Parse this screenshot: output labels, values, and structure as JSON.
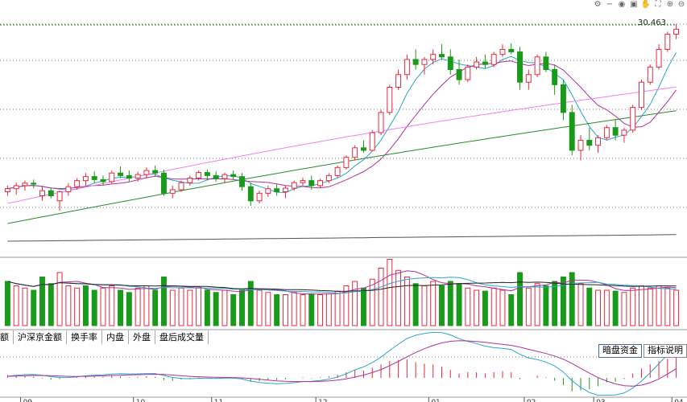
{
  "chart_data": {
    "type": "candlestick",
    "price_label": "30.463",
    "candles": [
      [
        27.18,
        27.3,
        27.1,
        27.24
      ],
      [
        27.24,
        27.36,
        27.12,
        27.3
      ],
      [
        27.3,
        27.4,
        27.2,
        27.35
      ],
      [
        27.35,
        27.42,
        27.25,
        27.33
      ],
      [
        27.1,
        27.3,
        27.0,
        27.2
      ],
      [
        27.2,
        27.25,
        27.05,
        27.1
      ],
      [
        27.0,
        27.2,
        26.8,
        27.18
      ],
      [
        27.18,
        27.35,
        27.1,
        27.28
      ],
      [
        27.28,
        27.45,
        27.22,
        27.4
      ],
      [
        27.4,
        27.55,
        27.3,
        27.48
      ],
      [
        27.48,
        27.58,
        27.35,
        27.42
      ],
      [
        27.42,
        27.5,
        27.3,
        27.38
      ],
      [
        27.38,
        27.6,
        27.33,
        27.55
      ],
      [
        27.55,
        27.68,
        27.45,
        27.5
      ],
      [
        27.5,
        27.6,
        27.38,
        27.45
      ],
      [
        27.45,
        27.58,
        27.38,
        27.52
      ],
      [
        27.52,
        27.66,
        27.44,
        27.6
      ],
      [
        27.6,
        27.7,
        27.48,
        27.55
      ],
      [
        27.55,
        27.62,
        27.1,
        27.15
      ],
      [
        27.15,
        27.3,
        27.05,
        27.22
      ],
      [
        27.22,
        27.4,
        27.18,
        27.36
      ],
      [
        27.36,
        27.5,
        27.3,
        27.45
      ],
      [
        27.45,
        27.6,
        27.4,
        27.56
      ],
      [
        27.56,
        27.62,
        27.4,
        27.5
      ],
      [
        27.5,
        27.58,
        27.38,
        27.44
      ],
      [
        27.44,
        27.56,
        27.35,
        27.52
      ],
      [
        27.52,
        27.6,
        27.42,
        27.48
      ],
      [
        27.48,
        27.55,
        27.2,
        27.28
      ],
      [
        27.28,
        27.36,
        26.9,
        27.0
      ],
      [
        27.0,
        27.2,
        26.95,
        27.15
      ],
      [
        27.15,
        27.3,
        27.08,
        27.24
      ],
      [
        27.24,
        27.34,
        27.1,
        27.18
      ],
      [
        27.18,
        27.3,
        27.05,
        27.25
      ],
      [
        27.25,
        27.4,
        27.2,
        27.36
      ],
      [
        27.36,
        27.46,
        27.28,
        27.4
      ],
      [
        27.4,
        27.5,
        27.22,
        27.3
      ],
      [
        27.3,
        27.44,
        27.26,
        27.4
      ],
      [
        27.4,
        27.55,
        27.35,
        27.5
      ],
      [
        27.5,
        27.7,
        27.46,
        27.66
      ],
      [
        27.66,
        27.9,
        27.62,
        27.86
      ],
      [
        27.86,
        28.1,
        27.8,
        28.05
      ],
      [
        28.05,
        28.2,
        27.95,
        28.0
      ],
      [
        28.0,
        28.4,
        27.98,
        28.35
      ],
      [
        28.35,
        28.8,
        28.3,
        28.75
      ],
      [
        28.75,
        29.3,
        28.7,
        29.25
      ],
      [
        29.25,
        29.6,
        29.2,
        29.5
      ],
      [
        29.5,
        29.9,
        29.4,
        29.8
      ],
      [
        29.8,
        30.0,
        29.6,
        29.7
      ],
      [
        29.7,
        29.85,
        29.5,
        29.8
      ],
      [
        29.8,
        30.0,
        29.7,
        29.9
      ],
      [
        29.9,
        30.1,
        29.8,
        29.85
      ],
      [
        29.85,
        30.0,
        29.5,
        29.6
      ],
      [
        29.6,
        29.8,
        29.3,
        29.4
      ],
      [
        29.4,
        29.7,
        29.35,
        29.65
      ],
      [
        29.65,
        29.85,
        29.6,
        29.75
      ],
      [
        29.75,
        29.9,
        29.62,
        29.7
      ],
      [
        29.7,
        29.95,
        29.65,
        29.9
      ],
      [
        29.9,
        30.1,
        29.85,
        30.0
      ],
      [
        30.0,
        30.12,
        29.9,
        29.95
      ],
      [
        29.95,
        30.05,
        29.2,
        29.35
      ],
      [
        29.35,
        29.6,
        29.2,
        29.5
      ],
      [
        29.5,
        29.9,
        29.45,
        29.85
      ],
      [
        29.85,
        29.95,
        29.55,
        29.6
      ],
      [
        29.6,
        29.7,
        29.1,
        29.3
      ],
      [
        29.3,
        29.4,
        28.6,
        28.75
      ],
      [
        28.75,
        28.9,
        27.9,
        28.0
      ],
      [
        28.0,
        28.3,
        27.8,
        28.2
      ],
      [
        28.2,
        28.45,
        28.0,
        28.1
      ],
      [
        28.1,
        28.3,
        27.95,
        28.25
      ],
      [
        28.25,
        28.5,
        28.2,
        28.45
      ],
      [
        28.45,
        28.6,
        28.2,
        28.3
      ],
      [
        28.3,
        28.45,
        28.15,
        28.4
      ],
      [
        28.4,
        28.9,
        28.35,
        28.85
      ],
      [
        28.85,
        29.4,
        28.8,
        29.35
      ],
      [
        29.35,
        29.7,
        29.3,
        29.65
      ],
      [
        29.65,
        30.1,
        29.6,
        30.0
      ],
      [
        30.0,
        30.35,
        29.95,
        30.3
      ],
      [
        30.3,
        30.5,
        30.2,
        30.4
      ]
    ],
    "volume": [
      [
        1.0,
        0
      ],
      [
        0.9,
        1
      ],
      [
        0.85,
        1
      ],
      [
        0.8,
        0
      ],
      [
        1.1,
        0
      ],
      [
        0.95,
        0
      ],
      [
        1.2,
        1
      ],
      [
        0.9,
        1
      ],
      [
        0.85,
        1
      ],
      [
        0.9,
        0
      ],
      [
        0.8,
        0
      ],
      [
        0.85,
        1
      ],
      [
        0.9,
        1
      ],
      [
        0.8,
        0
      ],
      [
        0.75,
        0
      ],
      [
        0.85,
        1
      ],
      [
        0.9,
        1
      ],
      [
        0.8,
        0
      ],
      [
        1.1,
        0
      ],
      [
        0.8,
        1
      ],
      [
        0.85,
        1
      ],
      [
        0.8,
        1
      ],
      [
        0.85,
        1
      ],
      [
        0.8,
        0
      ],
      [
        0.75,
        0
      ],
      [
        0.8,
        1
      ],
      [
        0.7,
        0
      ],
      [
        0.8,
        0
      ],
      [
        1.0,
        0
      ],
      [
        0.8,
        1
      ],
      [
        0.75,
        1
      ],
      [
        0.7,
        0
      ],
      [
        0.7,
        1
      ],
      [
        0.75,
        1
      ],
      [
        0.7,
        1
      ],
      [
        0.72,
        0
      ],
      [
        0.7,
        1
      ],
      [
        0.72,
        1
      ],
      [
        0.78,
        1
      ],
      [
        0.9,
        1
      ],
      [
        1.0,
        1
      ],
      [
        0.85,
        0
      ],
      [
        1.05,
        1
      ],
      [
        1.3,
        1
      ],
      [
        1.5,
        1
      ],
      [
        1.25,
        1
      ],
      [
        1.1,
        1
      ],
      [
        0.95,
        0
      ],
      [
        0.9,
        1
      ],
      [
        1.0,
        1
      ],
      [
        0.9,
        0
      ],
      [
        1.0,
        0
      ],
      [
        0.95,
        0
      ],
      [
        0.85,
        1
      ],
      [
        0.8,
        1
      ],
      [
        0.78,
        0
      ],
      [
        0.85,
        1
      ],
      [
        0.8,
        1
      ],
      [
        0.7,
        0
      ],
      [
        1.2,
        0
      ],
      [
        0.85,
        1
      ],
      [
        0.95,
        1
      ],
      [
        0.9,
        0
      ],
      [
        1.0,
        0
      ],
      [
        1.1,
        0
      ],
      [
        1.2,
        0
      ],
      [
        0.95,
        1
      ],
      [
        0.85,
        0
      ],
      [
        0.8,
        1
      ],
      [
        0.8,
        1
      ],
      [
        0.78,
        0
      ],
      [
        0.75,
        1
      ],
      [
        0.85,
        1
      ],
      [
        0.9,
        1
      ],
      [
        0.85,
        1
      ],
      [
        0.9,
        1
      ],
      [
        0.85,
        1
      ],
      [
        0.8,
        1
      ]
    ],
    "macd_hist": [
      0.05,
      0.04,
      0.03,
      0.02,
      -0.01,
      -0.03,
      -0.02,
      0.0,
      0.02,
      0.04,
      0.03,
      0.02,
      0.04,
      0.03,
      0.01,
      0.02,
      0.03,
      0.02,
      -0.04,
      -0.05,
      -0.03,
      -0.01,
      0.01,
      0.0,
      -0.01,
      0.01,
      0.0,
      -0.03,
      -0.07,
      -0.06,
      -0.04,
      -0.04,
      -0.02,
      0.0,
      0.01,
      -0.01,
      0.01,
      0.03,
      0.06,
      0.1,
      0.14,
      0.13,
      0.18,
      0.24,
      0.3,
      0.32,
      0.33,
      0.28,
      0.25,
      0.24,
      0.2,
      0.14,
      0.08,
      0.1,
      0.1,
      0.08,
      0.1,
      0.12,
      0.1,
      -0.02,
      0.0,
      0.04,
      0.01,
      -0.05,
      -0.13,
      -0.24,
      -0.22,
      -0.2,
      -0.15,
      -0.08,
      -0.07,
      -0.02,
      0.08,
      0.17,
      0.24,
      0.3,
      0.34,
      0.36
    ],
    "colors": {
      "up": "#e8283c",
      "down": "#1a9a1a",
      "ma5": "#2aa7c9",
      "ma10": "#b0309b",
      "ma30": "#ee82ee",
      "ma60": "#2a8a2a",
      "ma250": "#555555"
    },
    "tabs": [
      "额",
      "沪深京金额",
      "换手率",
      "内盘",
      "外盘",
      "盘后成交量"
    ],
    "right_tabs": [
      "暗盘资金",
      "指标说明"
    ],
    "date_marks": [
      "09",
      "10",
      "11",
      "12",
      "01",
      "02",
      "03",
      "04"
    ]
  },
  "toolbar": {
    "icons": [
      "settings-icon",
      "minus-icon",
      "eye-icon",
      "shop-icon",
      "hand-icon",
      "fullscreen-icon",
      "zoom-in-icon",
      "zoom-out-icon"
    ]
  }
}
